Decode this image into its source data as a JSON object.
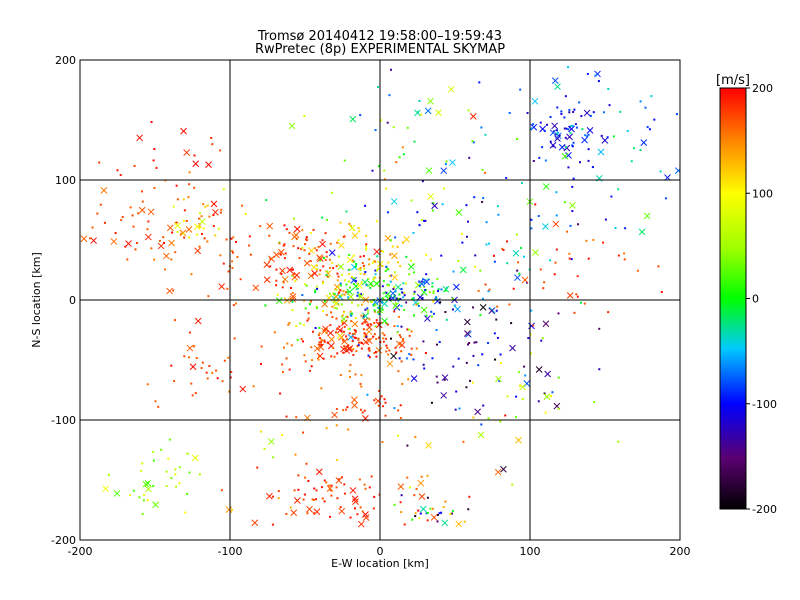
{
  "chart_data": {
    "type": "scatter",
    "title": "Tromsø 20140412 19:58:00–19:59:43",
    "subtitle": "RwPretec (8p) EXPERIMENTAL SKYMAP",
    "xlabel": "E-W location [km]",
    "ylabel": "N-S location [km]",
    "xlim": [
      -200,
      200
    ],
    "ylim": [
      -200,
      200
    ],
    "xticks": [
      -200,
      -100,
      0,
      100,
      200
    ],
    "yticks": [
      -200,
      -100,
      0,
      100,
      200
    ],
    "grid": true,
    "colorbar": {
      "label": "[m/s]",
      "range": [
        -200,
        200
      ],
      "ticks": [
        200,
        100,
        0,
        -100,
        -200
      ],
      "colormap": "rainbow (black -200 → purple → blue → cyan → green → yellow → orange → red +200)",
      "placement": "right"
    },
    "markers": [
      "dot",
      "x"
    ],
    "clusters": [
      {
        "x": -15,
        "y": -30,
        "sx": 18,
        "sy": 10,
        "n": 140,
        "vmin": 150,
        "vmax": 200
      },
      {
        "x": -30,
        "y": -50,
        "sx": 25,
        "sy": 20,
        "n": 50,
        "vmin": 140,
        "vmax": 200
      },
      {
        "x": -10,
        "y": -90,
        "sx": 12,
        "sy": 6,
        "n": 20,
        "vmin": 160,
        "vmax": 200
      },
      {
        "x": 10,
        "y": 5,
        "sx": 25,
        "sy": 12,
        "n": 160,
        "vmin": -120,
        "vmax": 60
      },
      {
        "x": -30,
        "y": 5,
        "sx": 25,
        "sy": 15,
        "n": 120,
        "vmin": -20,
        "vmax": 150
      },
      {
        "x": -55,
        "y": 35,
        "sx": 25,
        "sy": 18,
        "n": 110,
        "vmin": 150,
        "vmax": 200
      },
      {
        "x": -5,
        "y": 40,
        "sx": 25,
        "sy": 15,
        "n": 60,
        "vmin": 60,
        "vmax": 160
      },
      {
        "x": -145,
        "y": 60,
        "sx": 30,
        "sy": 25,
        "n": 90,
        "vmin": 150,
        "vmax": 200
      },
      {
        "x": -120,
        "y": 65,
        "sx": 10,
        "sy": 10,
        "n": 20,
        "vmin": 60,
        "vmax": 130
      },
      {
        "x": 125,
        "y": 140,
        "sx": 15,
        "sy": 12,
        "n": 60,
        "vmin": -130,
        "vmax": -70
      },
      {
        "x": 140,
        "y": 140,
        "sx": 45,
        "sy": 40,
        "n": 70,
        "vmin": -120,
        "vmax": -20
      },
      {
        "x": -140,
        "y": 125,
        "sx": 30,
        "sy": 15,
        "n": 15,
        "vmin": 170,
        "vmax": 200
      },
      {
        "x": -30,
        "y": -165,
        "sx": 25,
        "sy": 12,
        "n": 70,
        "vmin": 160,
        "vmax": 200
      },
      {
        "x": 30,
        "y": -175,
        "sx": 12,
        "sy": 8,
        "n": 30,
        "vmin": -190,
        "vmax": 200
      },
      {
        "x": -150,
        "y": -150,
        "sx": 15,
        "sy": 15,
        "n": 35,
        "vmin": 10,
        "vmax": 110
      },
      {
        "x": -110,
        "y": -50,
        "sx": 25,
        "sy": 20,
        "n": 40,
        "vmin": 150,
        "vmax": 200
      },
      {
        "x": 60,
        "y": -50,
        "sx": 35,
        "sy": 30,
        "n": 80,
        "vmin": -200,
        "vmax": -60
      },
      {
        "x": 110,
        "y": -80,
        "sx": 20,
        "sy": 20,
        "n": 20,
        "vmin": 20,
        "vmax": 110
      },
      {
        "x": 60,
        "y": 60,
        "sx": 50,
        "sy": 45,
        "n": 90,
        "vmin": -150,
        "vmax": 60
      },
      {
        "x": 120,
        "y": 30,
        "sx": 25,
        "sy": 20,
        "n": 40,
        "vmin": 150,
        "vmax": 200
      },
      {
        "x": 20,
        "y": 120,
        "sx": 40,
        "sy": 40,
        "n": 40,
        "vmin": -200,
        "vmax": 200
      },
      {
        "x": 0,
        "y": -130,
        "sx": 70,
        "sy": 30,
        "n": 40,
        "vmin": 40,
        "vmax": 200
      }
    ]
  }
}
